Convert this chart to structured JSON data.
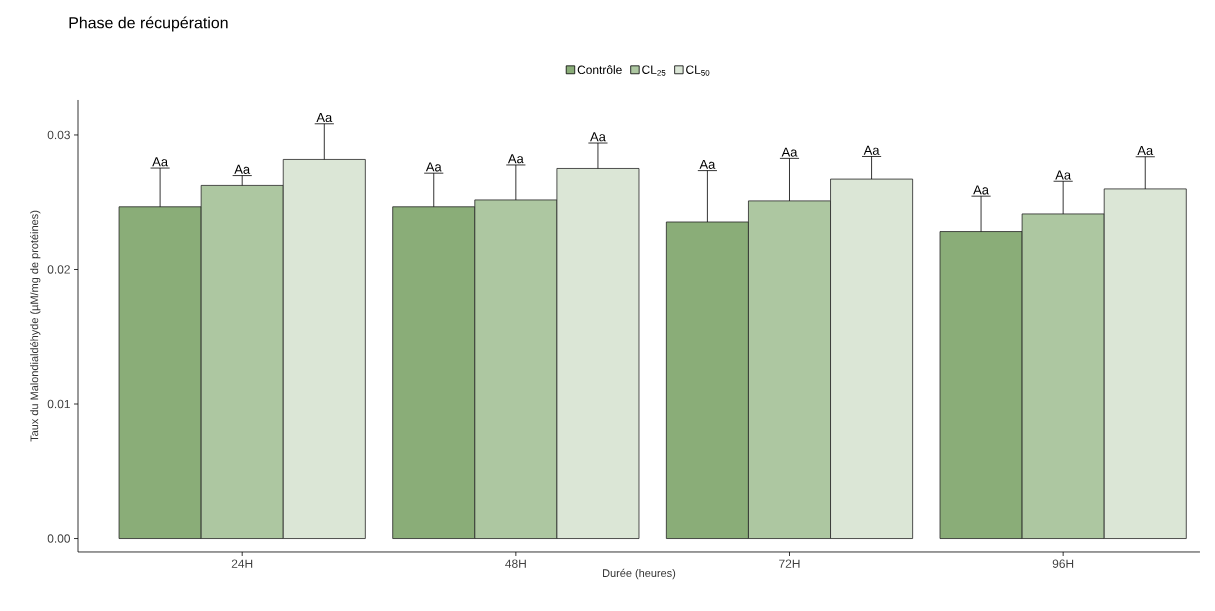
{
  "chart_data": {
    "type": "bar",
    "title": "Phase de récupération",
    "xlabel": "Durée (heures)",
    "ylabel": "Taux du Malondialdéhyde (µM/mg de protéines)",
    "categories": [
      "24H",
      "48H",
      "72H",
      "96H"
    ],
    "series": [
      {
        "name": "Contrôle",
        "color": "#8aad78",
        "values": [
          0.02466,
          0.02466,
          0.02353,
          0.02282
        ],
        "errors": [
          [
            0.02466,
            0.02754
          ],
          [
            0.02466,
            0.02716
          ],
          [
            0.02353,
            0.02735
          ],
          [
            0.02282,
            0.02545
          ]
        ]
      },
      {
        "name": "CL$_{25}$",
        "color": "#adc7a1",
        "values": [
          0.02625,
          0.02517,
          0.0251,
          0.02413
        ],
        "errors": [
          [
            0.02625,
            0.02698
          ],
          [
            0.02517,
            0.02777
          ],
          [
            0.0251,
            0.02826
          ],
          [
            0.02413,
            0.02656
          ]
        ]
      },
      {
        "name": "CL$_{50}$",
        "color": "#dbe6d6",
        "values": [
          0.02818,
          0.02751,
          0.02672,
          0.02599
        ],
        "errors": [
          [
            0.02818,
            0.03083
          ],
          [
            0.02751,
            0.0294
          ],
          [
            0.02672,
            0.0284
          ],
          [
            0.02599,
            0.02838
          ]
        ]
      }
    ],
    "annotations": [
      "Aa",
      "Aa",
      "Aa",
      "Aa",
      "Aa",
      "Aa",
      "Aa",
      "Aa",
      "Aa",
      "Aa",
      "Aa",
      "Aa"
    ],
    "ylim": [
      -0.001,
      0.0326
    ],
    "yticks": [
      {
        "value": 0,
        "label": "0.00"
      },
      0.01,
      0.02,
      0.03
    ],
    "legend": "top",
    "grid": false
  }
}
